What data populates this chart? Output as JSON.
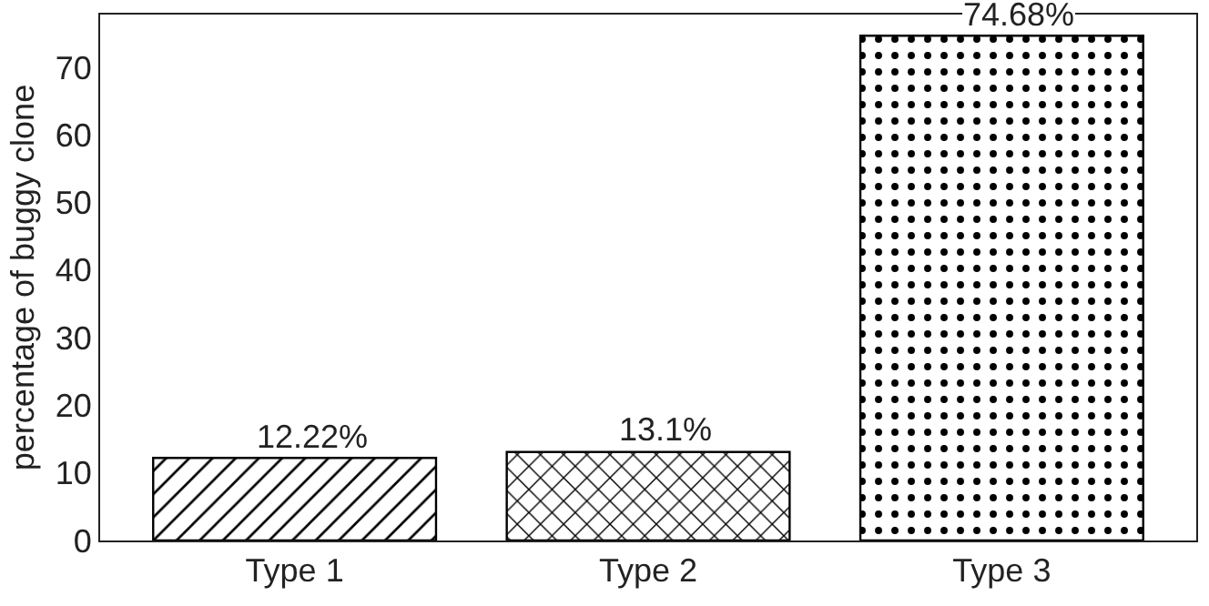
{
  "chart_data": {
    "type": "bar",
    "ylabel": "percentage of buggy clone",
    "categories": [
      "Type 1",
      "Type 2",
      "Type 3"
    ],
    "values": [
      12.22,
      13.1,
      74.68
    ],
    "value_labels": [
      "12.22%",
      "13.1%",
      "74.68%"
    ],
    "color": "#000000",
    "ylim": [
      0,
      77.8
    ],
    "yticks": [
      0,
      10,
      20,
      30,
      40,
      50,
      60,
      70
    ],
    "legend": false
  }
}
